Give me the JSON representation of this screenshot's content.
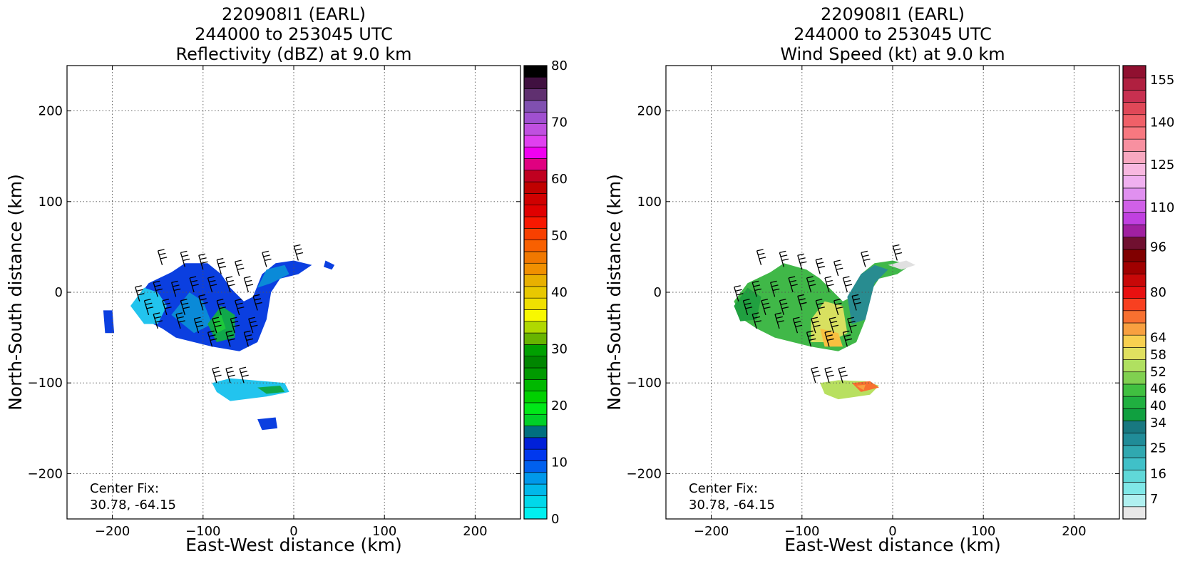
{
  "chart_data": [
    {
      "type": "heatmap",
      "title_lines": [
        "220908I1 (EARL)",
        "244000 to 253045 UTC",
        "Reflectivity (dBZ) at 9.0 km"
      ],
      "xlabel": "East-West distance (km)",
      "ylabel": "North-South distance (km)",
      "xlim": [
        -250,
        250
      ],
      "ylim": [
        -250,
        250
      ],
      "xticks": [
        -200,
        -100,
        0,
        100,
        200
      ],
      "xtick_labels": [
        "−200",
        "−100",
        "0",
        "100",
        "200"
      ],
      "yticks": [
        200,
        100,
        0,
        -100,
        -200
      ],
      "ytick_labels": [
        "200",
        "100",
        "0",
        "−100",
        "−200"
      ],
      "grid": true,
      "annotation": [
        "Center Fix:",
        "30.78, -64.15"
      ],
      "colorbar": {
        "min": 0,
        "max": 80,
        "tick_values": [
          0,
          10,
          20,
          30,
          40,
          50,
          60,
          70,
          80
        ],
        "tick_labels": [
          "0",
          "10",
          "20",
          "30",
          "40",
          "50",
          "60",
          "70",
          "80"
        ],
        "colors": [
          "#00f0f0",
          "#00d8ea",
          "#00b8ea",
          "#0098ea",
          "#0060ee",
          "#0038ee",
          "#0020d8",
          "#006f7f",
          "#00d028",
          "#00e818",
          "#00d000",
          "#00b800",
          "#009a00",
          "#008600",
          "#00a000",
          "#68b400",
          "#b0d800",
          "#f8f800",
          "#f0e000",
          "#e8c800",
          "#e8b000",
          "#f09000",
          "#f07800",
          "#f86000",
          "#f84000",
          "#f81800",
          "#e00000",
          "#d00000",
          "#c00000",
          "#c00020",
          "#e00080",
          "#f000f0",
          "#e040f0",
          "#c050e0",
          "#a050d0",
          "#8050b0",
          "#603070",
          "#401040",
          "#000000"
        ]
      },
      "legend": []
    },
    {
      "type": "heatmap",
      "title_lines": [
        "220908I1 (EARL)",
        "244000 to 253045 UTC",
        "Wind Speed (kt) at 9.0 km"
      ],
      "xlabel": "East-West distance (km)",
      "ylabel": "North-South distance (km)",
      "xlim": [
        -250,
        250
      ],
      "ylim": [
        -250,
        250
      ],
      "xticks": [
        -200,
        -100,
        0,
        100,
        200
      ],
      "xtick_labels": [
        "−200",
        "−100",
        "0",
        "100",
        "200"
      ],
      "yticks": [
        200,
        100,
        0,
        -100,
        -200
      ],
      "ytick_labels": [
        "200",
        "100",
        "0",
        "−100",
        "−200"
      ],
      "grid": true,
      "annotation": [
        "Center Fix:",
        "30.78, -64.15"
      ],
      "colorbar": {
        "min": 0,
        "max": 160,
        "tick_values": [
          7,
          16,
          25,
          34,
          40,
          46,
          52,
          58,
          64,
          80,
          96,
          110,
          125,
          140,
          155
        ],
        "tick_labels": [
          "7",
          "16",
          "25",
          "34",
          "40",
          "46",
          "52",
          "58",
          "64",
          "80",
          "96",
          "110",
          "125",
          "140",
          "155"
        ],
        "colors": [
          "#e8e8e8",
          "#b0f0f0",
          "#80e8e8",
          "#60d8d8",
          "#40c0c8",
          "#30a8b0",
          "#208c98",
          "#187880",
          "#10a040",
          "#20b040",
          "#40c040",
          "#80d050",
          "#b0e060",
          "#e0e060",
          "#f8d050",
          "#f8a040",
          "#f87030",
          "#f84020",
          "#e81010",
          "#c80808",
          "#a00000",
          "#800000",
          "#701030",
          "#a020a0",
          "#c040e0",
          "#d060e8",
          "#e090f0",
          "#f0b0f0",
          "#f8b8e0",
          "#f8a8c0",
          "#f890a0",
          "#f87880",
          "#f06068",
          "#e04858",
          "#c83050",
          "#b02040",
          "#901030"
        ]
      },
      "legend": []
    }
  ]
}
